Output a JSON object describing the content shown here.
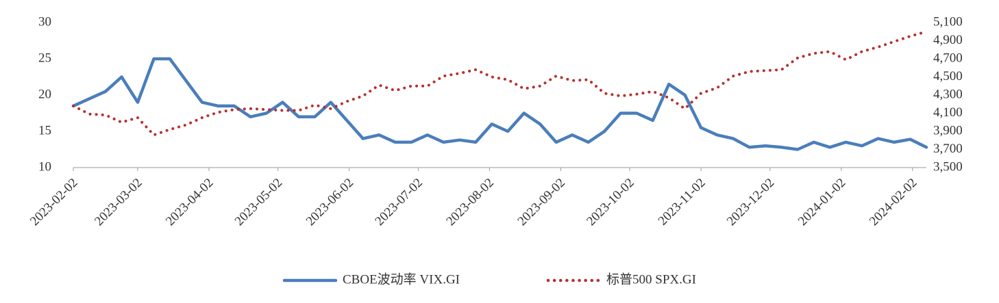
{
  "chart_data": {
    "type": "line",
    "x": [
      "2023-02-02",
      "2023-02-09",
      "2023-02-16",
      "2023-02-23",
      "2023-03-02",
      "2023-03-09",
      "2023-03-16",
      "2023-03-23",
      "2023-03-30",
      "2023-04-06",
      "2023-04-13",
      "2023-04-20",
      "2023-04-27",
      "2023-05-04",
      "2023-05-11",
      "2023-05-18",
      "2023-05-25",
      "2023-06-01",
      "2023-06-08",
      "2023-06-15",
      "2023-06-22",
      "2023-06-29",
      "2023-07-06",
      "2023-07-13",
      "2023-07-20",
      "2023-07-27",
      "2023-08-03",
      "2023-08-10",
      "2023-08-17",
      "2023-08-24",
      "2023-08-31",
      "2023-09-07",
      "2023-09-14",
      "2023-09-21",
      "2023-09-28",
      "2023-10-05",
      "2023-10-12",
      "2023-10-19",
      "2023-10-26",
      "2023-11-02",
      "2023-11-09",
      "2023-11-16",
      "2023-11-23",
      "2023-11-30",
      "2023-12-07",
      "2023-12-14",
      "2023-12-21",
      "2023-12-28",
      "2024-01-04",
      "2024-01-11",
      "2024-01-18",
      "2024-01-25",
      "2024-02-01",
      "2024-02-08"
    ],
    "series": [
      {
        "name": "CBOE波动率 VIX.GI",
        "color": "#4a7ebb",
        "values": [
          18.5,
          19.5,
          20.5,
          22.5,
          19,
          25,
          25,
          22,
          19,
          18.5,
          18.5,
          17,
          17.5,
          19,
          17,
          17,
          19,
          16.5,
          14,
          14.5,
          13.5,
          13.5,
          14.5,
          13.5,
          13.8,
          13.5,
          16,
          15,
          17.5,
          16,
          13.5,
          14.5,
          13.5,
          15,
          17.5,
          17.5,
          16.5,
          21.5,
          20,
          15.5,
          14.5,
          14,
          12.8,
          13,
          12.8,
          12.5,
          13.5,
          12.8,
          13.5,
          13,
          14,
          13.5,
          13.9,
          12.8
        ]
      },
      {
        "name": "标普500 SPX.GI",
        "color": "#b5302e",
        "axis": "y2",
        "values": [
          4180,
          4090,
          4080,
          4000,
          4050,
          3860,
          3920,
          3970,
          4050,
          4110,
          4140,
          4150,
          4140,
          4130,
          4130,
          4190,
          4150,
          4230,
          4290,
          4410,
          4350,
          4400,
          4400,
          4510,
          4540,
          4580,
          4500,
          4470,
          4370,
          4400,
          4510,
          4460,
          4470,
          4320,
          4290,
          4310,
          4340,
          4270,
          4150,
          4320,
          4380,
          4510,
          4560,
          4570,
          4580,
          4710,
          4760,
          4780,
          4690,
          4780,
          4830,
          4890,
          4950,
          5000
        ]
      }
    ],
    "xlim": [
      "2023-02-02",
      "2024-02-08"
    ],
    "xticks": [
      "2023-02-02",
      "2023-03-02",
      "2023-04-02",
      "2023-05-02",
      "2023-06-02",
      "2023-07-02",
      "2023-08-02",
      "2023-09-02",
      "2023-10-02",
      "2023-11-02",
      "2023-12-02",
      "2024-01-02",
      "2024-02-02"
    ],
    "ylim": [
      10,
      30
    ],
    "yticks": [
      10,
      15,
      20,
      25,
      30
    ],
    "y2lim": [
      3500,
      5100
    ],
    "y2ticks": [
      {
        "value": 3500,
        "label": "3,500"
      },
      {
        "value": 3700,
        "label": "3,700"
      },
      {
        "value": 3900,
        "label": "3,900"
      },
      {
        "value": 4100,
        "label": "4,100"
      },
      {
        "value": 4300,
        "label": "4,300"
      },
      {
        "value": 4500,
        "label": "4,500"
      },
      {
        "value": 4700,
        "label": "4,700"
      },
      {
        "value": 4900,
        "label": "4,900"
      },
      {
        "value": 5100,
        "label": "5,100"
      }
    ]
  }
}
